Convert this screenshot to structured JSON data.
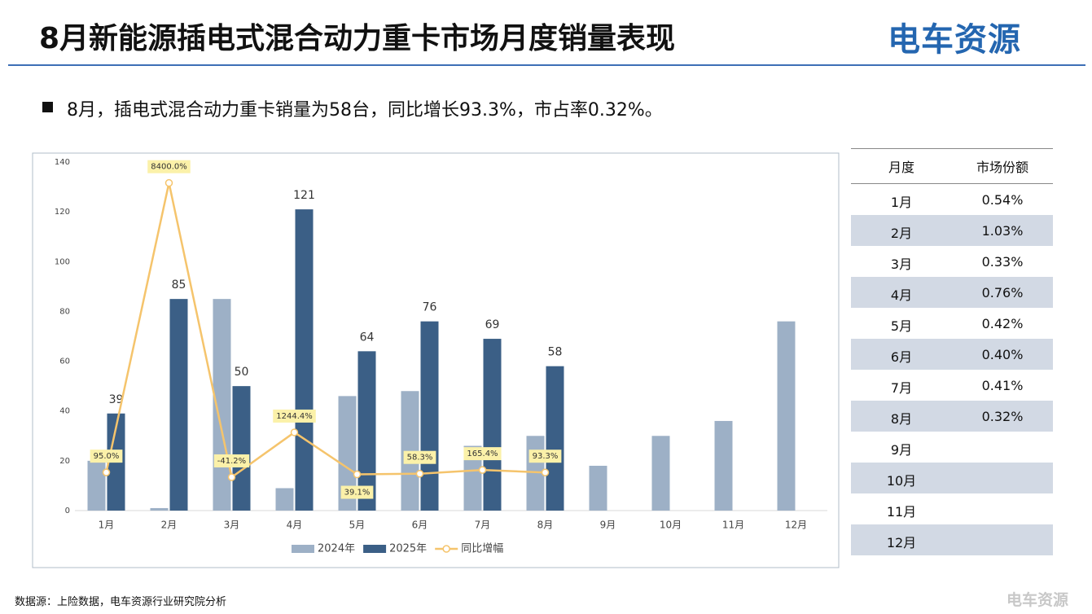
{
  "header": {
    "title": "8月新能源插电式混合动力重卡市场月度销量表现",
    "logo": "电车资源"
  },
  "bullet": "8月，插电式混合动力重卡销量为58台，同比增长93.3%，市占率0.32%。",
  "chart_data": {
    "type": "bar-line",
    "categories": [
      "1月",
      "2月",
      "3月",
      "4月",
      "5月",
      "6月",
      "7月",
      "8月",
      "9月",
      "10月",
      "11月",
      "12月"
    ],
    "series": [
      {
        "name": "2024年",
        "color": "#9db0c6",
        "values": [
          20,
          1,
          85,
          9,
          46,
          48,
          26,
          30,
          18,
          30,
          36,
          76
        ]
      },
      {
        "name": "2025年",
        "color": "#3b5f86",
        "values": [
          39,
          85,
          50,
          121,
          64,
          76,
          69,
          58,
          null,
          null,
          null,
          null
        ]
      },
      {
        "name": "同比增幅",
        "color": "#f5c46c",
        "axis": "y2",
        "values": [
          95.0,
          8400.0,
          -41.2,
          1244.4,
          39.1,
          58.3,
          165.4,
          93.3,
          null,
          null,
          null,
          null
        ],
        "value_labels": [
          "95.0%",
          "8400.0%",
          "-41.2%",
          "1244.4%",
          "39.1%",
          "58.3%",
          "165.4%",
          "93.3%",
          null,
          null,
          null,
          null
        ]
      }
    ],
    "ylim": [
      0,
      140
    ],
    "yticks": [
      0,
      20,
      40,
      60,
      80,
      100,
      120,
      140
    ],
    "y2lim": [
      -1000,
      9000
    ]
  },
  "table": {
    "header": [
      "月度",
      "市场份额"
    ],
    "rows": [
      [
        "1月",
        "0.54%"
      ],
      [
        "2月",
        "1.03%"
      ],
      [
        "3月",
        "0.33%"
      ],
      [
        "4月",
        "0.76%"
      ],
      [
        "5月",
        "0.42%"
      ],
      [
        "6月",
        "0.40%"
      ],
      [
        "7月",
        "0.41%"
      ],
      [
        "8月",
        "0.32%"
      ],
      [
        "9月"
      ],
      [
        "10月"
      ],
      [
        "11月"
      ],
      [
        "12月"
      ]
    ]
  },
  "source": "数据源：上险数据，电车资源行业研究院分析",
  "watermark": "电车资源"
}
